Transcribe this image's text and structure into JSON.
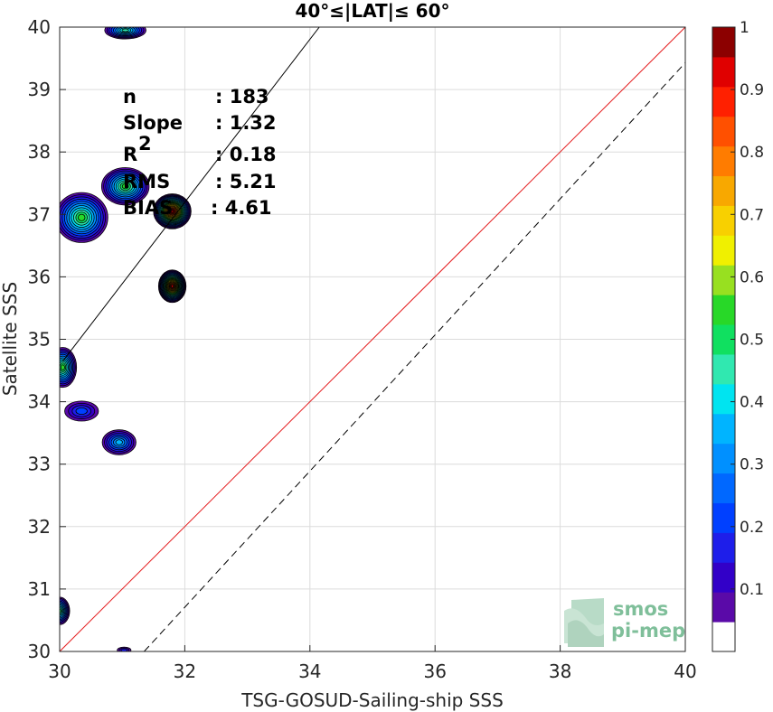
{
  "chart_data": {
    "type": "heatmap",
    "title": "40°≤|LAT|≤ 60°",
    "xlabel": "TSG-GOSUD-Sailing-ship SSS",
    "ylabel": "Satellite SSS",
    "xlim": [
      30,
      40
    ],
    "ylim": [
      30,
      40
    ],
    "x_ticks": [
      "30",
      "32",
      "34",
      "36",
      "38",
      "40"
    ],
    "y_ticks": [
      "30",
      "31",
      "32",
      "33",
      "34",
      "35",
      "36",
      "37",
      "38",
      "39",
      "40"
    ],
    "grid": true,
    "stats": [
      {
        "label": "n",
        "value": ": 183"
      },
      {
        "label": "Slope",
        "value": ": 1.32"
      },
      {
        "label": "R",
        "value": ": 0.18"
      },
      {
        "label": "RMS",
        "value": ": 5.21"
      },
      {
        "label": "BIAS",
        "value": ": 4.61"
      }
    ],
    "r_superscript": "2",
    "lines": [
      {
        "name": "one-to-one",
        "color": "#e41a1c",
        "style": "solid",
        "points": [
          [
            30,
            30
          ],
          [
            40,
            40
          ]
        ]
      },
      {
        "name": "fit",
        "color": "#000000",
        "style": "solid",
        "points": [
          [
            30.05,
            34.65
          ],
          [
            34.15,
            40.0
          ]
        ]
      },
      {
        "name": "offset",
        "color": "#000000",
        "style": "dashed",
        "points": [
          [
            31.35,
            30.0
          ],
          [
            40.0,
            39.43
          ]
        ]
      }
    ],
    "density_blobs": [
      {
        "x": 31.05,
        "y": 39.95,
        "rx": 0.33,
        "ry": 0.14,
        "peak": 0.45
      },
      {
        "x": 31.05,
        "y": 37.45,
        "rx": 0.38,
        "ry": 0.3,
        "peak": 0.55
      },
      {
        "x": 30.35,
        "y": 36.95,
        "rx": 0.42,
        "ry": 0.4,
        "peak": 0.55
      },
      {
        "x": 31.8,
        "y": 37.05,
        "rx": 0.3,
        "ry": 0.28,
        "peak": 1.0
      },
      {
        "x": 31.8,
        "y": 35.85,
        "rx": 0.22,
        "ry": 0.26,
        "peak": 0.95
      },
      {
        "x": 30.05,
        "y": 34.55,
        "rx": 0.22,
        "ry": 0.32,
        "peak": 0.55
      },
      {
        "x": 30.35,
        "y": 33.85,
        "rx": 0.27,
        "ry": 0.16,
        "peak": 0.2
      },
      {
        "x": 30.95,
        "y": 33.35,
        "rx": 0.27,
        "ry": 0.2,
        "peak": 0.35
      },
      {
        "x": 30.0,
        "y": 30.65,
        "rx": 0.16,
        "ry": 0.22,
        "peak": 0.5
      },
      {
        "x": 31.03,
        "y": 30.02,
        "rx": 0.11,
        "ry": 0.05,
        "peak": 0.15
      }
    ],
    "colorbar": {
      "range": [
        0,
        1
      ],
      "ticks": [
        "0.1",
        "0.2",
        "0.3",
        "0.4",
        "0.5",
        "0.6",
        "0.7",
        "0.8",
        "0.9",
        "1"
      ],
      "colors": [
        "#ffffff",
        "#5a0aa8",
        "#3200c8",
        "#1e1eea",
        "#0040ff",
        "#0068ff",
        "#0090ff",
        "#00b4ff",
        "#00e4f0",
        "#30e8b0",
        "#10e060",
        "#28d828",
        "#98e020",
        "#f0f000",
        "#f8d000",
        "#f8a800",
        "#ff7c00",
        "#ff5000",
        "#ff2000",
        "#e00000",
        "#8c0000"
      ]
    }
  },
  "logo": {
    "line1": "smos",
    "line2": "pi-mep"
  }
}
